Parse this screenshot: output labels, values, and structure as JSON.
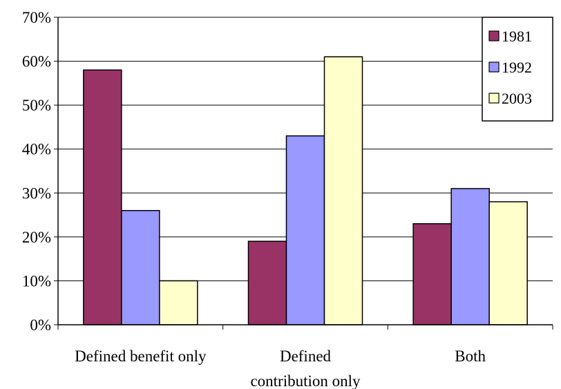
{
  "chart_data": {
    "type": "bar",
    "categories": [
      [
        "Defined benefit only"
      ],
      [
        "Defined",
        "contribution only"
      ],
      [
        "Both"
      ]
    ],
    "series": [
      {
        "name": "1981",
        "color": "#993366",
        "values": [
          58,
          19,
          23
        ]
      },
      {
        "name": "1992",
        "color": "#9999FF",
        "values": [
          26,
          43,
          31
        ]
      },
      {
        "name": "2003",
        "color": "#FFFFCC",
        "values": [
          10,
          61,
          28
        ]
      }
    ],
    "ylim": [
      0,
      70
    ],
    "yticks": [
      0,
      10,
      20,
      30,
      40,
      50,
      60,
      70
    ],
    "ytick_format": "%",
    "grid": "horizontal",
    "legend_position": "top-right"
  }
}
